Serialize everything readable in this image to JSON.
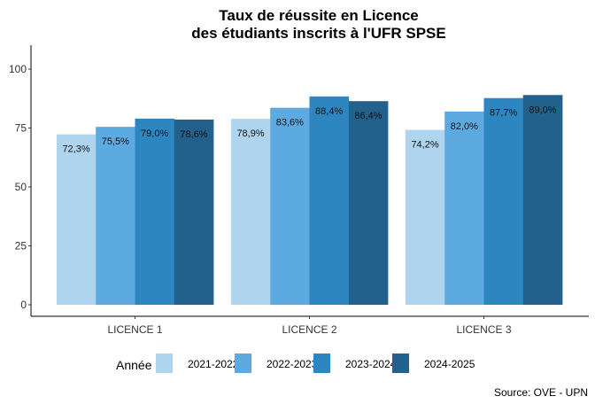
{
  "chart_data": {
    "type": "bar",
    "title": [
      "Taux de réussite en Licence",
      "des étudiants inscrits à l'UFR SPSE"
    ],
    "xlabel": "",
    "ylabel": "",
    "categories": [
      "LICENCE 1",
      "LICENCE 2",
      "LICENCE 3"
    ],
    "series": [
      {
        "name": "2021-2022",
        "color": "#AED4EE",
        "values": [
          72.3,
          78.9,
          74.2
        ],
        "labels": [
          "72,3%",
          "78,9%",
          "74,2%"
        ]
      },
      {
        "name": "2022-2023",
        "color": "#5DAAE0",
        "values": [
          75.5,
          83.6,
          82.0
        ],
        "labels": [
          "75,5%",
          "83,6%",
          "82,0%"
        ]
      },
      {
        "name": "2023-2024",
        "color": "#2E86C1",
        "values": [
          79.0,
          88.4,
          87.7
        ],
        "labels": [
          "79,0%",
          "88,4%",
          "87,7%"
        ]
      },
      {
        "name": "2024-2025",
        "color": "#22618B",
        "values": [
          78.6,
          86.4,
          89.0
        ],
        "labels": [
          "78,6%",
          "86,4%",
          "89,0%"
        ]
      }
    ],
    "ylim": [
      -5,
      110
    ],
    "yticks": [
      0,
      25,
      50,
      75,
      100
    ],
    "grid": false,
    "legend": {
      "title": "Année",
      "position": "bottom"
    },
    "caption": "Source: OVE - UPN"
  }
}
